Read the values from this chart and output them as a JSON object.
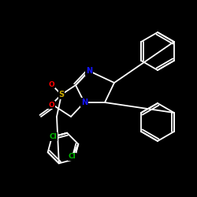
{
  "bg_color": "#000000",
  "bond_color": "#ffffff",
  "bond_width": 1.3,
  "atom_colors": {
    "N": "#1414ff",
    "S": "#ccaa00",
    "O": "#ff0000",
    "Cl": "#00bb00",
    "C": "#ffffff"
  },
  "figsize": [
    2.5,
    2.5
  ],
  "dpi": 100
}
